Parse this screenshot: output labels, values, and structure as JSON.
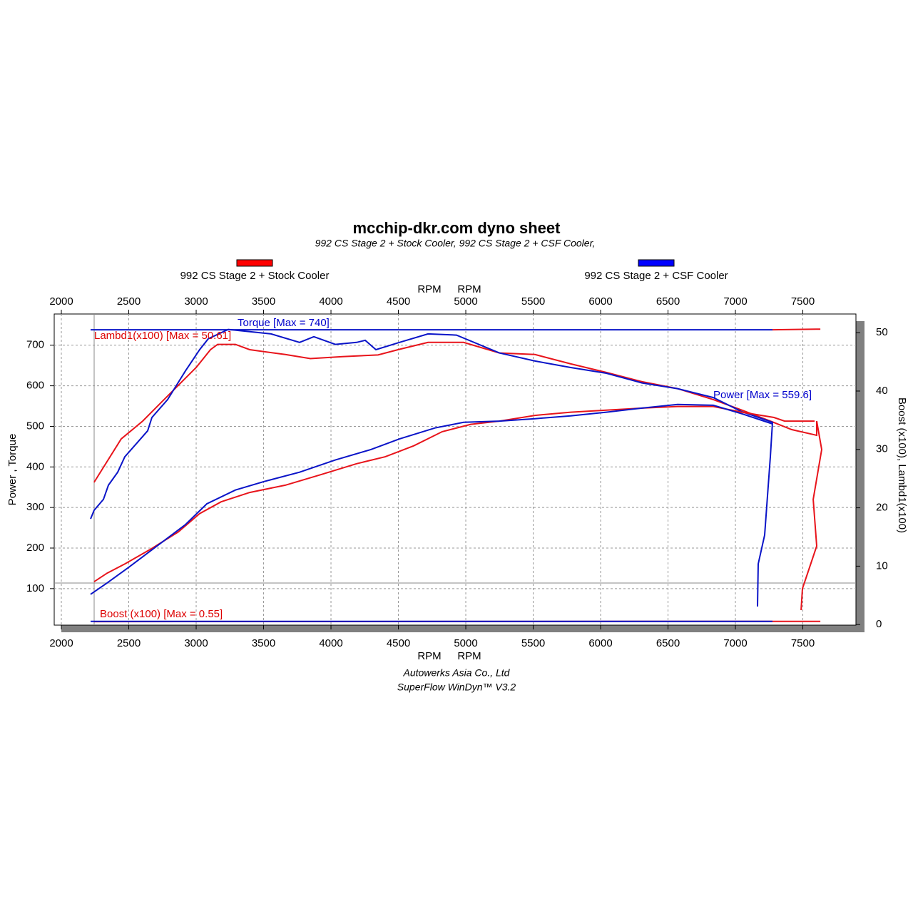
{
  "chart_data": {
    "type": "line",
    "title": "mcchip-dkr.com dyno sheet",
    "subtitle": "992 CS Stage 2 + Stock Cooler, 992 CS Stage 2 + CSF Cooler,",
    "legend": [
      {
        "name": "992 CS Stage 2 + Stock Cooler",
        "color": "#ff0000"
      },
      {
        "name": "992 CS Stage 2 + CSF Cooler",
        "color": "#0000ff"
      }
    ],
    "x_label": "RPM",
    "y_label": "Power , Torque",
    "y2_label": "Boost (x100), Lambd1(x100)",
    "annotations": [
      {
        "text": "Torque [Max = 740]",
        "color": "#0000cc"
      },
      {
        "text": "Lambd1(x100) [Max = 50.61]",
        "color": "#dd0000"
      },
      {
        "text": "Power  [Max = 559.6]",
        "color": "#0000cc"
      },
      {
        "text": "Boost (x100) [Max = 0.55]",
        "color": "#dd0000"
      }
    ],
    "footer": [
      "Autowerks Asia Co., Ltd",
      "SuperFlow WinDyn™ V3.2"
    ],
    "xlim": [
      1947,
      7894
    ],
    "ylim": [
      10,
      777
    ],
    "y2lim": [
      -0.1,
      53.2
    ],
    "xticks": [
      2000,
      2500,
      3000,
      3500,
      4000,
      4500,
      5000,
      5500,
      6000,
      6500,
      7000,
      7500
    ],
    "yticks": [
      100,
      200,
      300,
      400,
      500,
      600,
      700
    ],
    "y2ticks": [
      0,
      10,
      20,
      30,
      40,
      50
    ],
    "grid": true,
    "series": [
      {
        "color": "#e8141b",
        "x": [
          2243,
          2312,
          2444,
          2603,
          2762,
          2921,
          3000,
          3106,
          3159,
          3291,
          3397,
          3661,
          3847,
          4085,
          4349,
          4508,
          4720,
          4984,
          5249,
          5513,
          5778,
          6042,
          6307,
          6571,
          6836,
          7048,
          7259,
          7418,
          7603,
          7603,
          7640,
          7577,
          7603,
          7497,
          7487
        ],
        "values": [
          362,
          399,
          469,
          513,
          566,
          619,
          645,
          689,
          702,
          702,
          689,
          677,
          667,
          672,
          676,
          690,
          707,
          707,
          681,
          677,
          654,
          633,
          610,
          593,
          566,
          540,
          513,
          492,
          478,
          513,
          443,
          320,
          205,
          100,
          47
        ]
      },
      {
        "color": "#0a14c8",
        "x": [
          2217,
          2243,
          2312,
          2349,
          2418,
          2471,
          2640,
          2672,
          2788,
          2921,
          3026,
          3090,
          3238,
          3556,
          3767,
          3873,
          4032,
          4190,
          4254,
          4333,
          4508,
          4720,
          4931,
          5249,
          5513,
          5778,
          6042,
          6307,
          6571,
          6836,
          7048,
          7275,
          7259,
          7217,
          7169,
          7164
        ],
        "values": [
          272,
          293,
          320,
          355,
          387,
          425,
          489,
          522,
          566,
          637,
          689,
          716,
          739,
          728,
          707,
          721,
          702,
          707,
          712,
          689,
          707,
          728,
          725,
          681,
          661,
          645,
          631,
          607,
          593,
          571,
          536,
          510,
          425,
          232,
          161,
          56
        ]
      },
      {
        "color": "#e8141b",
        "x": [
          2243,
          2339,
          2471,
          2656,
          2868,
          3026,
          3185,
          3397,
          3661,
          3926,
          4190,
          4402,
          4614,
          4825,
          5037,
          5249,
          5513,
          5778,
          6042,
          6307,
          6571,
          6836,
          7048,
          7286,
          7365,
          7587
        ],
        "values": [
          117,
          138,
          161,
          196,
          240,
          285,
          314,
          337,
          355,
          381,
          408,
          425,
          452,
          487,
          505,
          513,
          527,
          535,
          540,
          545,
          549,
          549,
          535,
          522,
          513,
          513
        ]
      },
      {
        "color": "#0a14c8",
        "x": [
          2217,
          2339,
          2497,
          2709,
          2921,
          3079,
          3291,
          3503,
          3767,
          4032,
          4296,
          4508,
          4772,
          4984,
          5249,
          5513,
          5778,
          6042,
          6307,
          6571,
          6836,
          7048,
          7275
        ],
        "values": [
          86,
          114,
          152,
          205,
          258,
          309,
          343,
          364,
          387,
          417,
          443,
          469,
          496,
          510,
          513,
          519,
          526,
          535,
          545,
          554,
          552,
          531,
          506
        ]
      },
      {
        "color": "#0a14c8",
        "axis": "y2",
        "x": [
          2217,
          7275
        ],
        "values": [
          50.5,
          50.5
        ]
      },
      {
        "color": "#e8141b",
        "axis": "y2",
        "x": [
          7275,
          7630
        ],
        "values": [
          50.5,
          50.61
        ]
      },
      {
        "color": "#e8141b",
        "axis": "y2",
        "x": [
          2243,
          7630
        ],
        "values": [
          0.5,
          0.55
        ]
      },
      {
        "color": "#0a14c8",
        "axis": "y2",
        "x": [
          2217,
          7275
        ],
        "values": [
          0.55,
          0.55
        ]
      }
    ]
  }
}
